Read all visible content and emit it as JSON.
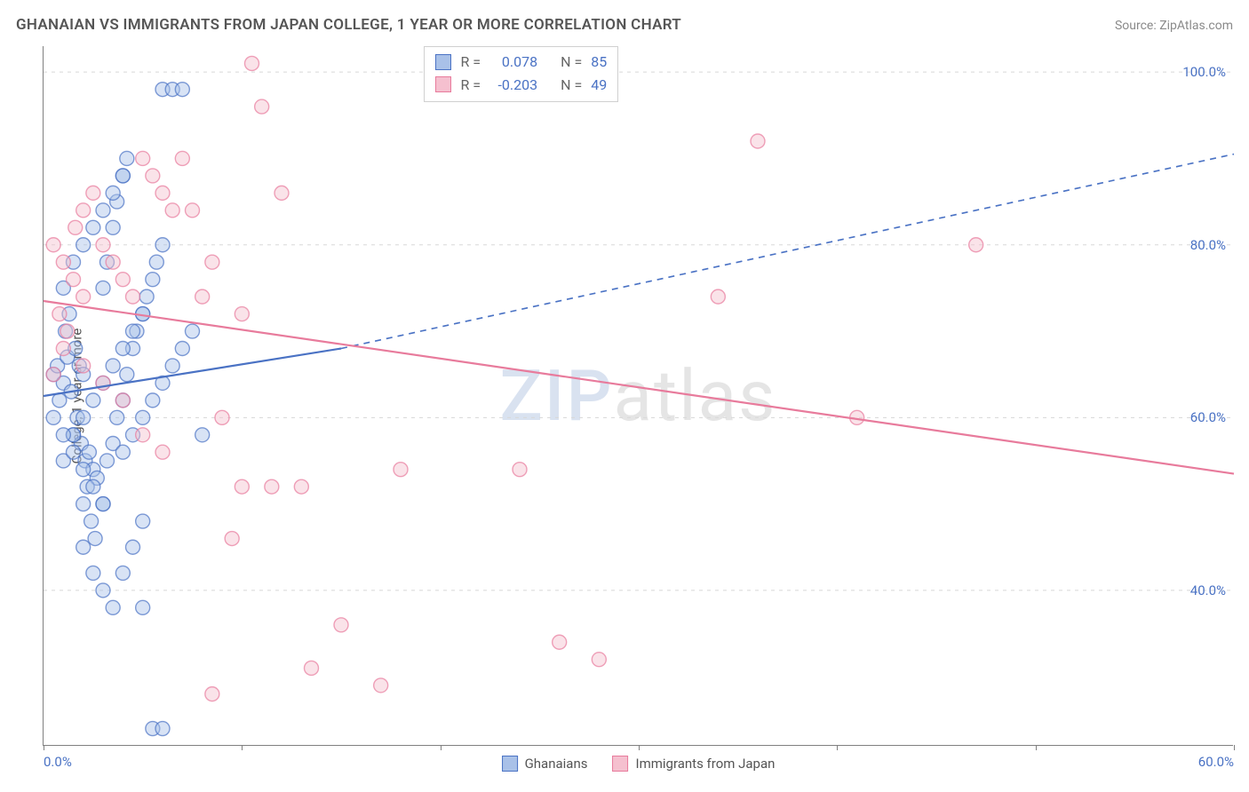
{
  "title": "GHANAIAN VS IMMIGRANTS FROM JAPAN COLLEGE, 1 YEAR OR MORE CORRELATION CHART",
  "source_label": "Source: ZipAtlas.com",
  "y_axis_label": "College, 1 year or more",
  "watermark": {
    "left": "ZIP",
    "right": "atlas"
  },
  "chart": {
    "type": "scatter",
    "background_color": "#ffffff",
    "grid_color": "#d8d8d8",
    "axis_color": "#808080",
    "xlim": [
      0,
      60
    ],
    "ylim": [
      22,
      103
    ],
    "x_ticks": [
      0,
      10,
      20,
      30,
      40,
      50,
      60
    ],
    "x_tick_labels": [
      "0.0%",
      "",
      "",
      "",
      "",
      "",
      "60.0%"
    ],
    "y_ticks": [
      40,
      60,
      80,
      100
    ],
    "y_tick_labels": [
      "40.0%",
      "60.0%",
      "80.0%",
      "100.0%"
    ],
    "marker_radius": 8,
    "marker_stroke_width": 1.4,
    "marker_fill_opacity": 0.45,
    "line_width": 2.2,
    "series": [
      {
        "id": "ghanaians",
        "label": "Ghanaians",
        "color_stroke": "#4a72c4",
        "color_fill": "#a9c1e8",
        "r_value": "0.078",
        "n_value": "85",
        "regression_solid": {
          "x1": 0,
          "y1": 62.5,
          "x2": 15,
          "y2": 68.0
        },
        "regression_dashed": {
          "x1": 15,
          "y1": 68.0,
          "x2": 60,
          "y2": 90.5
        },
        "points": [
          [
            0.5,
            65
          ],
          [
            0.7,
            66
          ],
          [
            1.0,
            64
          ],
          [
            1.2,
            67
          ],
          [
            1.4,
            63
          ],
          [
            1.6,
            68
          ],
          [
            1.8,
            66
          ],
          [
            2.0,
            65
          ],
          [
            0.8,
            62
          ],
          [
            1.1,
            70
          ],
          [
            1.3,
            72
          ],
          [
            1.5,
            58
          ],
          [
            1.7,
            60
          ],
          [
            1.9,
            57
          ],
          [
            2.1,
            55
          ],
          [
            2.3,
            56
          ],
          [
            2.5,
            54
          ],
          [
            2.7,
            53
          ],
          [
            2.0,
            50
          ],
          [
            2.2,
            52
          ],
          [
            2.4,
            48
          ],
          [
            2.6,
            46
          ],
          [
            3.0,
            50
          ],
          [
            3.2,
            55
          ],
          [
            3.5,
            57
          ],
          [
            3.7,
            60
          ],
          [
            4.0,
            62
          ],
          [
            4.2,
            65
          ],
          [
            4.5,
            68
          ],
          [
            4.7,
            70
          ],
          [
            5.0,
            72
          ],
          [
            5.2,
            74
          ],
          [
            5.5,
            76
          ],
          [
            5.7,
            78
          ],
          [
            6.0,
            80
          ],
          [
            3.0,
            75
          ],
          [
            3.2,
            78
          ],
          [
            3.5,
            82
          ],
          [
            3.7,
            85
          ],
          [
            4.0,
            88
          ],
          [
            4.2,
            90
          ],
          [
            6.0,
            98
          ],
          [
            6.5,
            98
          ],
          [
            7.0,
            98
          ],
          [
            2.0,
            45
          ],
          [
            2.5,
            42
          ],
          [
            3.0,
            40
          ],
          [
            3.5,
            38
          ],
          [
            5.0,
            38
          ],
          [
            5.5,
            24
          ],
          [
            6.0,
            24
          ],
          [
            1.0,
            55
          ],
          [
            1.5,
            58
          ],
          [
            2.0,
            60
          ],
          [
            2.5,
            62
          ],
          [
            3.0,
            64
          ],
          [
            3.5,
            66
          ],
          [
            4.0,
            68
          ],
          [
            4.5,
            70
          ],
          [
            5.0,
            72
          ],
          [
            1.0,
            75
          ],
          [
            1.5,
            78
          ],
          [
            2.0,
            80
          ],
          [
            2.5,
            82
          ],
          [
            3.0,
            84
          ],
          [
            3.5,
            86
          ],
          [
            4.0,
            88
          ],
          [
            0.5,
            60
          ],
          [
            1.0,
            58
          ],
          [
            1.5,
            56
          ],
          [
            2.0,
            54
          ],
          [
            2.5,
            52
          ],
          [
            3.0,
            50
          ],
          [
            4.0,
            56
          ],
          [
            4.5,
            58
          ],
          [
            5.0,
            60
          ],
          [
            5.5,
            62
          ],
          [
            6.0,
            64
          ],
          [
            6.5,
            66
          ],
          [
            7.0,
            68
          ],
          [
            7.5,
            70
          ],
          [
            8.0,
            58
          ],
          [
            5.0,
            48
          ],
          [
            4.5,
            45
          ],
          [
            4.0,
            42
          ]
        ]
      },
      {
        "id": "japan",
        "label": "Immigrants from Japan",
        "color_stroke": "#e87b9c",
        "color_fill": "#f5c0cf",
        "r_value": "-0.203",
        "n_value": "49",
        "regression_solid": {
          "x1": 0,
          "y1": 73.5,
          "x2": 60,
          "y2": 53.5
        },
        "regression_dashed": null,
        "points": [
          [
            0.5,
            80
          ],
          [
            1.0,
            78
          ],
          [
            1.5,
            76
          ],
          [
            2.0,
            74
          ],
          [
            0.8,
            72
          ],
          [
            1.2,
            70
          ],
          [
            1.6,
            82
          ],
          [
            2.0,
            84
          ],
          [
            2.5,
            86
          ],
          [
            3.0,
            80
          ],
          [
            3.5,
            78
          ],
          [
            4.0,
            76
          ],
          [
            4.5,
            74
          ],
          [
            5.0,
            90
          ],
          [
            5.5,
            88
          ],
          [
            6.0,
            86
          ],
          [
            6.5,
            84
          ],
          [
            7.0,
            90
          ],
          [
            7.5,
            84
          ],
          [
            8.0,
            74
          ],
          [
            10.0,
            72
          ],
          [
            10.5,
            101
          ],
          [
            8.5,
            78
          ],
          [
            9.0,
            60
          ],
          [
            9.5,
            46
          ],
          [
            10.0,
            52
          ],
          [
            11.0,
            96
          ],
          [
            11.5,
            52
          ],
          [
            12.0,
            86
          ],
          [
            13.0,
            52
          ],
          [
            13.5,
            31
          ],
          [
            15.0,
            36
          ],
          [
            17.0,
            29
          ],
          [
            18.0,
            54
          ],
          [
            8.5,
            28
          ],
          [
            24.0,
            54
          ],
          [
            26.0,
            34
          ],
          [
            28.0,
            32
          ],
          [
            34.0,
            74
          ],
          [
            36.0,
            92
          ],
          [
            41.0,
            60
          ],
          [
            47.0,
            80
          ],
          [
            2.0,
            66
          ],
          [
            3.0,
            64
          ],
          [
            4.0,
            62
          ],
          [
            5.0,
            58
          ],
          [
            6.0,
            56
          ],
          [
            1.0,
            68
          ],
          [
            0.5,
            65
          ]
        ]
      }
    ]
  },
  "stats_legend": {
    "r_label": "R =",
    "n_label": "N ="
  },
  "tick_label_color": "#4a72c4",
  "text_color": "#555555"
}
